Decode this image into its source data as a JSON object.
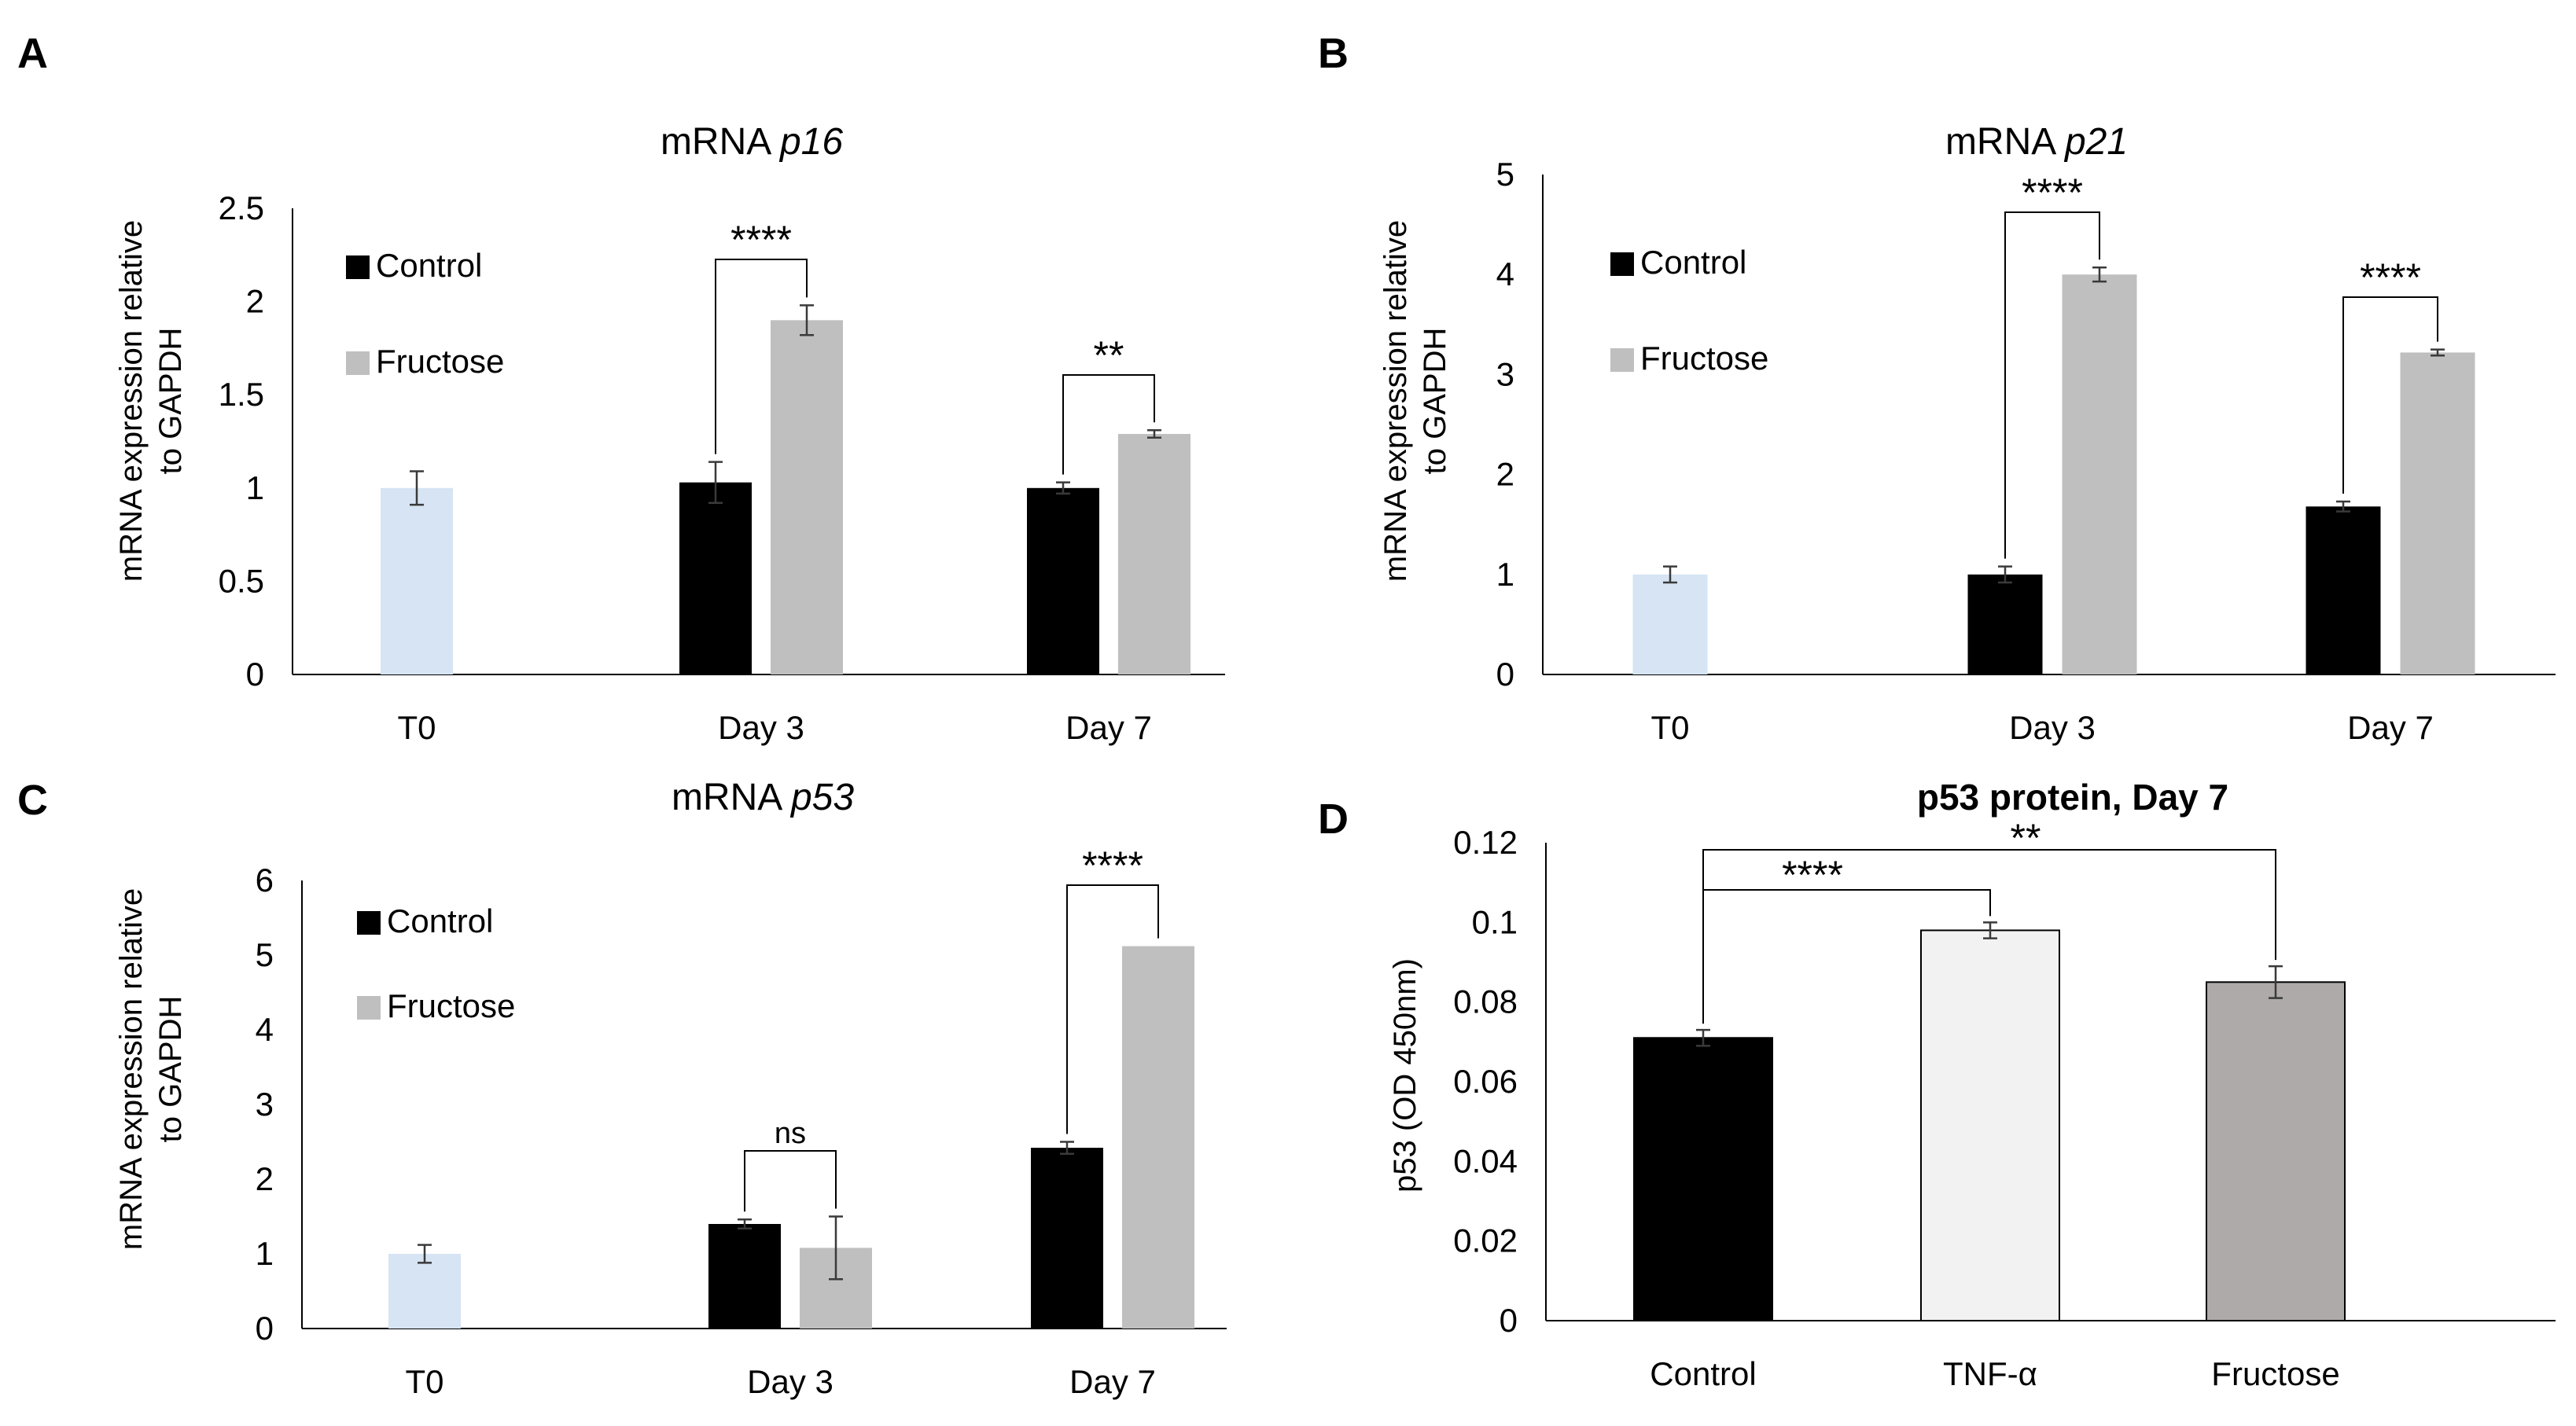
{
  "figure": {
    "panel_letters": [
      "A",
      "B",
      "C",
      "D"
    ]
  },
  "chart_data": [
    {
      "panel": "A",
      "type": "bar",
      "title": "mRNA ",
      "title_italic": "p16",
      "ylabel": [
        "mRNA expression relative",
        "to GAPDH"
      ],
      "xlabel": "",
      "ylim": [
        0,
        2.5
      ],
      "yticks": [
        0,
        0.5,
        1,
        1.5,
        2,
        2.5
      ],
      "ytick_labels": [
        "0",
        "0.5",
        "1",
        "1.5",
        "2",
        "2.5"
      ],
      "categories": [
        "T0",
        "Day 3",
        "Day 7"
      ],
      "legend": [
        "Control",
        "Fructose"
      ],
      "colors": {
        "T0": "#d6e4f3",
        "Control": "#000000",
        "Fructose": "#bfbfbf"
      },
      "baseline": {
        "name": "T0",
        "value": 1.0,
        "error": 0.09
      },
      "series": [
        {
          "name": "Control",
          "values": [
            null,
            1.03,
            1.0
          ],
          "errors": [
            null,
            0.11,
            0.03
          ]
        },
        {
          "name": "Fructose",
          "values": [
            null,
            1.9,
            1.29
          ],
          "errors": [
            null,
            0.08,
            0.02
          ]
        }
      ],
      "significance": [
        {
          "category": "Day 3",
          "label": "****"
        },
        {
          "category": "Day 7",
          "label": "**"
        }
      ]
    },
    {
      "panel": "B",
      "type": "bar",
      "title": "mRNA ",
      "title_italic": "p21",
      "ylabel": [
        "mRNA expression relative",
        "to GAPDH"
      ],
      "xlabel": "",
      "ylim": [
        0,
        5
      ],
      "yticks": [
        0,
        1,
        2,
        3,
        4,
        5
      ],
      "ytick_labels": [
        "0",
        "1",
        "2",
        "3",
        "4",
        "5"
      ],
      "categories": [
        "T0",
        "Day 3",
        "Day 7"
      ],
      "legend": [
        "Control",
        "Fructose"
      ],
      "colors": {
        "T0": "#d6e4f3",
        "Control": "#000000",
        "Fructose": "#bfbfbf"
      },
      "baseline": {
        "name": "T0",
        "value": 1.0,
        "error": 0.08
      },
      "series": [
        {
          "name": "Control",
          "values": [
            null,
            1.0,
            1.68
          ],
          "errors": [
            null,
            0.08,
            0.05
          ]
        },
        {
          "name": "Fructose",
          "values": [
            null,
            4.0,
            3.22
          ],
          "errors": [
            null,
            0.07,
            0.03
          ]
        }
      ],
      "significance": [
        {
          "category": "Day 3",
          "label": "****"
        },
        {
          "category": "Day 7",
          "label": "****"
        }
      ]
    },
    {
      "panel": "C",
      "type": "bar",
      "title": "mRNA ",
      "title_italic": "p53",
      "ylabel": [
        "mRNA expression relative",
        "to GAPDH"
      ],
      "xlabel": "",
      "ylim": [
        0,
        6
      ],
      "yticks": [
        0,
        1,
        2,
        3,
        4,
        5,
        6
      ],
      "ytick_labels": [
        "0",
        "1",
        "2",
        "3",
        "4",
        "5",
        "6"
      ],
      "categories": [
        "T0",
        "Day 3",
        "Day 7"
      ],
      "legend": [
        "Control",
        "Fructose"
      ],
      "colors": {
        "T0": "#d6e4f3",
        "Control": "#000000",
        "Fructose": "#bfbfbf"
      },
      "baseline": {
        "name": "T0",
        "value": 1.0,
        "error": 0.12
      },
      "series": [
        {
          "name": "Control",
          "values": [
            null,
            1.4,
            2.42
          ],
          "errors": [
            null,
            0.06,
            0.08
          ]
        },
        {
          "name": "Fructose",
          "values": [
            null,
            1.08,
            5.12
          ],
          "errors": [
            null,
            0.42,
            0.0
          ]
        }
      ],
      "significance": [
        {
          "category": "Day 3",
          "label": "ns"
        },
        {
          "category": "Day 7",
          "label": "****"
        }
      ]
    },
    {
      "panel": "D",
      "type": "bar",
      "title": "p53 protein, Day 7",
      "ylabel": [
        "p53 (OD 450nm)"
      ],
      "xlabel": "",
      "ylim": [
        0,
        0.12
      ],
      "yticks": [
        0,
        0.02,
        0.04,
        0.06,
        0.08,
        0.1,
        0.12
      ],
      "ytick_labels": [
        "0",
        "0.02",
        "0.04",
        "0.06",
        "0.08",
        "0.1",
        "0.12"
      ],
      "categories": [
        "Control",
        "TNF-α",
        "Fructose"
      ],
      "values": [
        0.071,
        0.098,
        0.085
      ],
      "errors": [
        0.002,
        0.002,
        0.004
      ],
      "colors": [
        "#000000",
        "#f2f2f2",
        "#aeaaaa"
      ],
      "significance": [
        {
          "from": "Control",
          "to": "TNF-α",
          "label": "****"
        },
        {
          "from": "Control",
          "to": "Fructose",
          "label": "**"
        }
      ]
    }
  ]
}
